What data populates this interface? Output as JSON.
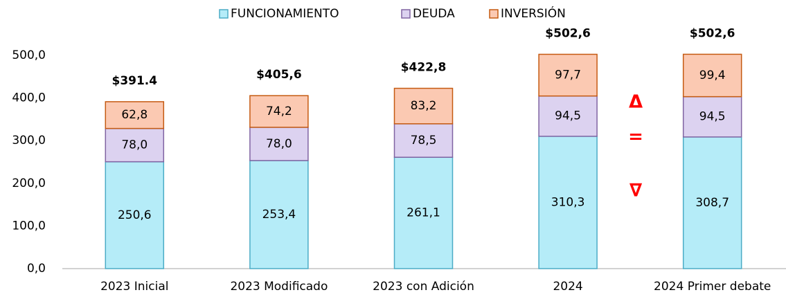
{
  "chart_data": {
    "type": "stacked_bar",
    "categories": [
      "2023 Inicial",
      "2023 Modificado",
      "2023 con Adición",
      "2024",
      "2024 Primer debate"
    ],
    "series": [
      {
        "name": "FUNCIONAMIENTO",
        "color": "#b5ecf8",
        "border": "#4bacc6",
        "values": [
          250.6,
          253.4,
          261.1,
          310.3,
          308.7
        ],
        "value_labels": [
          "250,6",
          "253,4",
          "261,1",
          "310,3",
          "308,7"
        ]
      },
      {
        "name": "DEUDA",
        "color": "#dcd2f0",
        "border": "#8064a2",
        "values": [
          78.0,
          78.0,
          78.5,
          94.5,
          94.5
        ],
        "value_labels": [
          "78,0",
          "78,0",
          "78,5",
          "94,5",
          "94,5"
        ]
      },
      {
        "name": "INVERSIÓN",
        "color": "#fbc9b2",
        "border": "#c55a11",
        "values": [
          62.8,
          74.2,
          83.2,
          97.7,
          99.4
        ],
        "value_labels": [
          "62,8",
          "74,2",
          "83,2",
          "97,7",
          "99,4"
        ]
      }
    ],
    "totals": [
      391.4,
      405.6,
      422.8,
      502.6,
      502.6
    ],
    "total_labels": [
      "$391.4",
      "$405,6",
      "$422,8",
      "$502,6",
      "$502,6"
    ],
    "annotations": [
      "Δ",
      "=",
      "∇"
    ],
    "ylim": [
      0,
      500
    ],
    "yticks": [
      {
        "value": 0,
        "label": "0,0"
      },
      {
        "value": 100,
        "label": "100,0"
      },
      {
        "value": 200,
        "label": "200,0"
      },
      {
        "value": 300,
        "label": "300,0"
      },
      {
        "value": 400,
        "label": "400,0"
      },
      {
        "value": 500,
        "label": "500,0"
      }
    ],
    "grid": false,
    "legend": "top"
  }
}
